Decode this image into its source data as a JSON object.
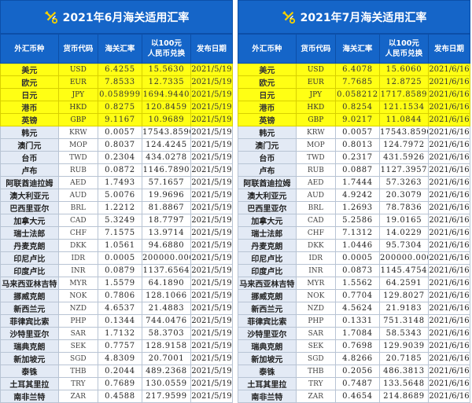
{
  "colors": {
    "header_blue": "#1565c8",
    "highlight_yellow": "#ffff14",
    "name_cell": "#e3eaf5"
  },
  "icon": "tools-icon",
  "columns": [
    "外汇币种",
    "货币代码",
    "海关汇率",
    "以100元\n人民币兑换",
    "发布日期"
  ],
  "tables": [
    {
      "title": "2021年6月海关适用汇率",
      "date": "2021/5/19",
      "rows": [
        [
          "美元",
          "USD",
          "6.4255",
          "15.5630"
        ],
        [
          "欧元",
          "EUR",
          "7.8533",
          "12.7335"
        ],
        [
          "日元",
          "JPY",
          "0.058999",
          "1694.9440"
        ],
        [
          "港币",
          "HKD",
          "0.8275",
          "120.8459"
        ],
        [
          "英镑",
          "GBP",
          "9.1167",
          "10.9689"
        ],
        [
          "韩元",
          "KRW",
          "0.0057",
          "17543.8596"
        ],
        [
          "澳门元",
          "MOP",
          "0.8037",
          "124.4245"
        ],
        [
          "台币",
          "TWD",
          "0.2304",
          "434.0278"
        ],
        [
          "卢布",
          "RUB",
          "0.0872",
          "1146.7890"
        ],
        [
          "阿联酋迪拉姆",
          "AED",
          "1.7493",
          "57.1657"
        ],
        [
          "澳大利亚元",
          "AUD",
          "5.0076",
          "19.9696"
        ],
        [
          "巴西里亚尔",
          "BRL",
          "1.2212",
          "81.8867"
        ],
        [
          "加拿大元",
          "CAD",
          "5.3249",
          "18.7797"
        ],
        [
          "瑞士法郎",
          "CHF",
          "7.1575",
          "13.9714"
        ],
        [
          "丹麦克朗",
          "DKK",
          "1.0561",
          "94.6880"
        ],
        [
          "印尼卢比",
          "IDR",
          "0.0005",
          "200000.0000"
        ],
        [
          "印度卢比",
          "INR",
          "0.0879",
          "1137.6564"
        ],
        [
          "马来西亚林吉特",
          "MYR",
          "1.5579",
          "64.1890"
        ],
        [
          "挪威克朗",
          "NOK",
          "0.7806",
          "128.1066"
        ],
        [
          "新西兰元",
          "NZD",
          "4.6537",
          "21.4883"
        ],
        [
          "菲律宾比索",
          "PHP",
          "0.1344",
          "744.0476"
        ],
        [
          "沙特里亚尔",
          "SAR",
          "1.7132",
          "58.3703"
        ],
        [
          "瑞典克朗",
          "SEK",
          "0.7757",
          "128.9158"
        ],
        [
          "新加坡元",
          "SGD",
          "4.8309",
          "20.7001"
        ],
        [
          "泰铢",
          "THB",
          "0.2044",
          "489.2368"
        ],
        [
          "土耳其里拉",
          "TRY",
          "0.7689",
          "130.0559"
        ],
        [
          "南非兰特",
          "ZAR",
          "0.4588",
          "217.9599"
        ]
      ]
    },
    {
      "title": "2021年7月海关适用汇率",
      "date": "2021/6/16",
      "rows": [
        [
          "美元",
          "USD",
          "6.4078",
          "15.6060"
        ],
        [
          "欧元",
          "EUR",
          "7.7685",
          "12.8725"
        ],
        [
          "日元",
          "JPY",
          "0.058212",
          "1717.8589"
        ],
        [
          "港币",
          "HKD",
          "0.8254",
          "121.1534"
        ],
        [
          "英镑",
          "GBP",
          "9.0217",
          "11.0844"
        ],
        [
          "韩元",
          "KRW",
          "0.0057",
          "17543.8596"
        ],
        [
          "澳门元",
          "MOP",
          "0.8013",
          "124.7972"
        ],
        [
          "台币",
          "TWD",
          "0.2317",
          "431.5926"
        ],
        [
          "卢布",
          "RUB",
          "0.0887",
          "1127.3957"
        ],
        [
          "阿联酋迪拉姆",
          "AED",
          "1.7444",
          "57.3263"
        ],
        [
          "澳大利亚元",
          "AUD",
          "4.9242",
          "20.3079"
        ],
        [
          "巴西里亚尔",
          "BRL",
          "1.2693",
          "78.7836"
        ],
        [
          "加拿大元",
          "CAD",
          "5.2586",
          "19.0165"
        ],
        [
          "瑞士法郎",
          "CHF",
          "7.1312",
          "14.0229"
        ],
        [
          "丹麦克朗",
          "DKK",
          "1.0446",
          "95.7304"
        ],
        [
          "印尼卢比",
          "IDR",
          "0.0005",
          "200000.0000"
        ],
        [
          "印度卢比",
          "INR",
          "0.0873",
          "1145.4754"
        ],
        [
          "马来西亚林吉特",
          "MYR",
          "1.5562",
          "64.2591"
        ],
        [
          "挪威克朗",
          "NOK",
          "0.7704",
          "129.8027"
        ],
        [
          "新西兰元",
          "NZD",
          "4.5624",
          "21.9183"
        ],
        [
          "菲律宾比索",
          "PHP",
          "0.1331",
          "751.3148"
        ],
        [
          "沙特里亚尔",
          "SAR",
          "1.7084",
          "58.5343"
        ],
        [
          "瑞典克朗",
          "SEK",
          "0.7698",
          "129.9039"
        ],
        [
          "新加坡元",
          "SGD",
          "4.8266",
          "20.7185"
        ],
        [
          "泰铢",
          "THB",
          "0.2056",
          "486.3813"
        ],
        [
          "土耳其里拉",
          "TRY",
          "0.7487",
          "133.5648"
        ],
        [
          "南非兰特",
          "ZAR",
          "0.4654",
          "214.8689"
        ]
      ]
    }
  ],
  "highlighted_rows": 5
}
